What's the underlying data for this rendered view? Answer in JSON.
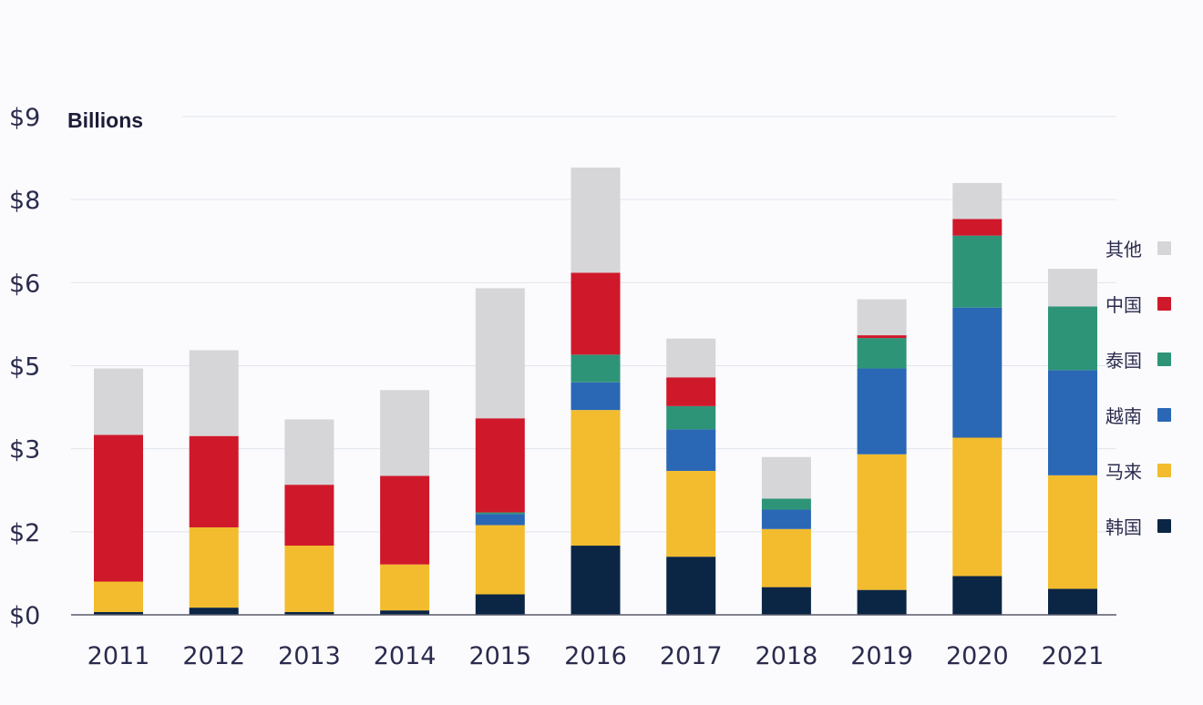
{
  "chart_data": {
    "type": "bar",
    "stacked": true,
    "title": "",
    "unit_label": "Billions",
    "xlabel": "",
    "ylabel": "",
    "ylim": [
      0,
      9
    ],
    "ytick_labels": [
      "$0",
      "$2",
      "$3",
      "$5",
      "$6",
      "$8",
      "$9"
    ],
    "categories": [
      "2011",
      "2012",
      "2013",
      "2014",
      "2015",
      "2016",
      "2017",
      "2018",
      "2019",
      "2020",
      "2021"
    ],
    "series": [
      {
        "name": "韩国",
        "color": "#0b2545",
        "values": [
          0.05,
          0.13,
          0.05,
          0.08,
          0.37,
          1.25,
          1.05,
          0.5,
          0.45,
          0.7,
          0.47
        ]
      },
      {
        "name": "马来",
        "color": "#f2bc2e",
        "values": [
          0.55,
          1.45,
          1.2,
          0.83,
          1.25,
          2.45,
          1.55,
          1.05,
          2.45,
          2.5,
          2.05
        ]
      },
      {
        "name": "越南",
        "color": "#2a67b5",
        "values": [
          0,
          0,
          0,
          0,
          0.2,
          0.5,
          0.75,
          0.35,
          1.55,
          2.35,
          1.9
        ]
      },
      {
        "name": "泰国",
        "color": "#2e9478",
        "values": [
          0,
          0,
          0,
          0,
          0.03,
          0.5,
          0.42,
          0.2,
          0.55,
          1.3,
          1.15
        ]
      },
      {
        "name": "中国",
        "color": "#d0182b",
        "values": [
          2.65,
          1.65,
          1.1,
          1.6,
          1.7,
          1.48,
          0.52,
          0,
          0.05,
          0.3,
          0
        ]
      },
      {
        "name": "其他",
        "color": "#d6d6d8",
        "values": [
          1.2,
          1.55,
          1.18,
          1.55,
          2.35,
          1.9,
          0.7,
          0.75,
          0.65,
          0.65,
          0.68
        ]
      }
    ],
    "legend": {
      "position": "right",
      "order": [
        "其他",
        "中国",
        "泰国",
        "越南",
        "马来",
        "韩国"
      ]
    },
    "grid": true
  }
}
